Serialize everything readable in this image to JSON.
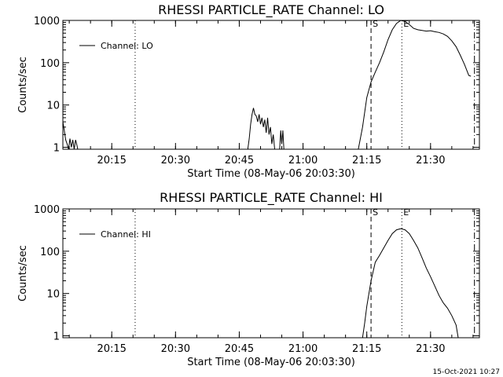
{
  "timestamp": "15-Oct-2021 10:27",
  "chart_data": [
    {
      "type": "line",
      "title": "RHESSI PARTICLE_RATE Channel: LO",
      "xlabel": "Start Time (08-May-06 20:03:30)",
      "ylabel": "Counts/sec",
      "yscale": "log",
      "ylim": [
        0.9,
        1000
      ],
      "xlim": [
        "20:03:30",
        "21:41:30"
      ],
      "x_ticks": [
        "20:15",
        "20:30",
        "20:45",
        "21:00",
        "21:15",
        "21:30"
      ],
      "y_ticks": [
        "1",
        "10",
        "100",
        "1000"
      ],
      "legend": {
        "label": "Channel: LO",
        "position": "top-left"
      },
      "markers": [
        {
          "time": "20:20:30",
          "style": "dotted",
          "label": ""
        },
        {
          "time": "21:16:00",
          "style": "dashed",
          "label": "S"
        },
        {
          "time": "21:23:15",
          "style": "dotted",
          "label": "E"
        },
        {
          "time": "21:40:20",
          "style": "dashdot",
          "label": ""
        }
      ],
      "series": [
        {
          "name": "Channel: LO",
          "segments": [
            [
              [
                "20:03:30",
                4
              ],
              [
                "20:03:50",
                2.5
              ],
              [
                "20:04:10",
                1.5
              ],
              [
                "20:04:30",
                1.2
              ],
              [
                "20:04:50",
                0.9
              ],
              [
                "20:05:10",
                1.6
              ],
              [
                "20:05:30",
                1.0
              ],
              [
                "20:05:50",
                1.5
              ],
              [
                "20:06:10",
                0.9
              ],
              [
                "20:06:30",
                1.5
              ],
              [
                "20:06:50",
                1.1
              ],
              [
                "20:07:00",
                0.9
              ]
            ],
            [
              [
                "20:47:00",
                0.9
              ],
              [
                "20:47:20",
                1.6
              ],
              [
                "20:47:40",
                3.5
              ],
              [
                "20:48:00",
                6
              ],
              [
                "20:48:20",
                8.5
              ],
              [
                "20:48:40",
                6
              ],
              [
                "20:49:00",
                5.5
              ],
              [
                "20:49:20",
                4
              ],
              [
                "20:49:40",
                6
              ],
              [
                "20:50:00",
                3.5
              ],
              [
                "20:50:20",
                5
              ],
              [
                "20:50:40",
                3
              ],
              [
                "20:51:00",
                4.5
              ],
              [
                "20:51:20",
                2.2
              ],
              [
                "20:51:40",
                5
              ],
              [
                "20:52:00",
                2
              ],
              [
                "20:52:20",
                3
              ],
              [
                "20:52:40",
                1.2
              ],
              [
                "20:53:00",
                2
              ],
              [
                "20:53:20",
                0.9
              ]
            ],
            [
              [
                "20:54:30",
                0.9
              ],
              [
                "20:54:45",
                2.5
              ],
              [
                "20:55:00",
                1.2
              ],
              [
                "20:55:15",
                2.5
              ],
              [
                "20:55:30",
                0.9
              ]
            ],
            [
              [
                "21:13:00",
                0.9
              ],
              [
                "21:14:00",
                3
              ],
              [
                "21:15:00",
                15
              ],
              [
                "21:16:00",
                35
              ],
              [
                "21:17:00",
                60
              ],
              [
                "21:18:00",
                100
              ],
              [
                "21:19:00",
                180
              ],
              [
                "21:20:00",
                350
              ],
              [
                "21:21:00",
                600
              ],
              [
                "21:22:00",
                850
              ],
              [
                "21:23:00",
                1000
              ],
              [
                "21:24:00",
                950
              ],
              [
                "21:25:00",
                800
              ],
              [
                "21:26:00",
                650
              ],
              [
                "21:27:00",
                600
              ],
              [
                "21:28:00",
                580
              ],
              [
                "21:29:00",
                560
              ],
              [
                "21:30:00",
                570
              ],
              [
                "21:31:00",
                540
              ],
              [
                "21:32:00",
                520
              ],
              [
                "21:33:00",
                480
              ],
              [
                "21:34:00",
                420
              ],
              [
                "21:35:00",
                330
              ],
              [
                "21:36:00",
                240
              ],
              [
                "21:37:00",
                150
              ],
              [
                "21:38:00",
                90
              ],
              [
                "21:39:00",
                50
              ],
              [
                "21:39:30",
                48
              ]
            ]
          ]
        }
      ]
    },
    {
      "type": "line",
      "title": "RHESSI PARTICLE_RATE Channel: HI",
      "xlabel": "Start Time (08-May-06 20:03:30)",
      "ylabel": "Counts/sec",
      "yscale": "log",
      "ylim": [
        0.9,
        1000
      ],
      "xlim": [
        "20:03:30",
        "21:41:30"
      ],
      "x_ticks": [
        "20:15",
        "20:30",
        "20:45",
        "21:00",
        "21:15",
        "21:30"
      ],
      "y_ticks": [
        "1",
        "10",
        "100",
        "1000"
      ],
      "legend": {
        "label": "Channel: HI",
        "position": "top-left"
      },
      "markers": [
        {
          "time": "20:20:30",
          "style": "dotted",
          "label": ""
        },
        {
          "time": "21:16:00",
          "style": "dashed",
          "label": "S"
        },
        {
          "time": "21:23:15",
          "style": "dotted",
          "label": "E"
        },
        {
          "time": "21:40:20",
          "style": "dashdot",
          "label": ""
        }
      ],
      "series": [
        {
          "name": "Channel: HI",
          "segments": [
            [
              [
                "21:14:00",
                0.9
              ],
              [
                "21:14:30",
                2
              ],
              [
                "21:15:00",
                5
              ],
              [
                "21:16:00",
                20
              ],
              [
                "21:17:00",
                55
              ],
              [
                "21:18:00",
                80
              ],
              [
                "21:19:00",
                120
              ],
              [
                "21:20:00",
                180
              ],
              [
                "21:21:00",
                260
              ],
              [
                "21:22:00",
                320
              ],
              [
                "21:23:00",
                340
              ],
              [
                "21:24:00",
                320
              ],
              [
                "21:25:00",
                260
              ],
              [
                "21:26:00",
                180
              ],
              [
                "21:27:00",
                120
              ],
              [
                "21:28:00",
                70
              ],
              [
                "21:29:00",
                40
              ],
              [
                "21:30:00",
                25
              ],
              [
                "21:31:00",
                15
              ],
              [
                "21:32:00",
                9
              ],
              [
                "21:33:00",
                6
              ],
              [
                "21:34:00",
                4.5
              ],
              [
                "21:35:00",
                3
              ],
              [
                "21:36:00",
                1.8
              ],
              [
                "21:36:30",
                0.9
              ]
            ]
          ]
        }
      ]
    }
  ]
}
